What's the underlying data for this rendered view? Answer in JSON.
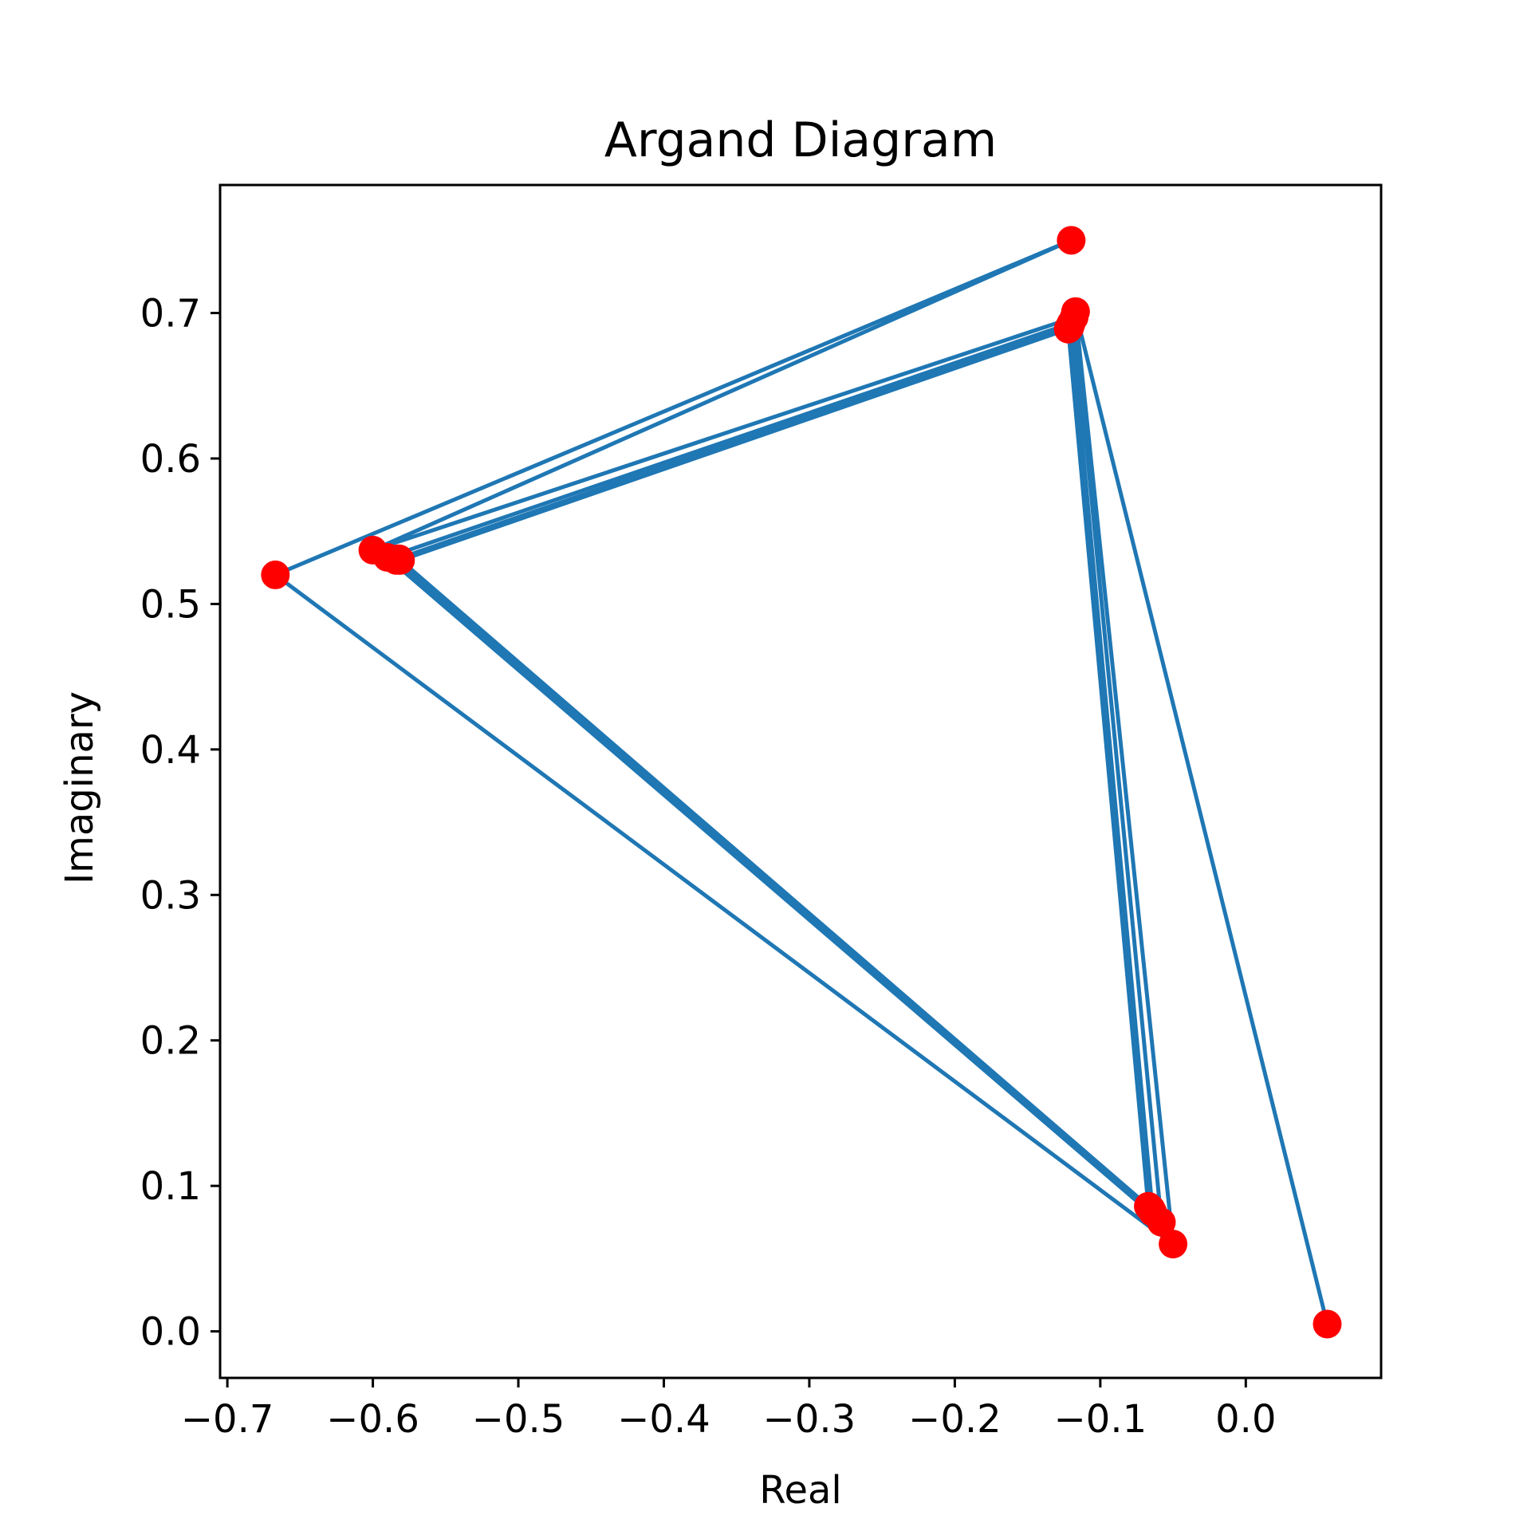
{
  "chart_data": {
    "type": "line",
    "title": "Argand Diagram",
    "xlabel": "Real",
    "ylabel": "Imaginary",
    "xlim": [
      -0.705,
      0.093
    ],
    "ylim": [
      -0.032,
      0.788
    ],
    "xticks": [
      -0.7,
      -0.6,
      -0.5,
      -0.4,
      -0.3,
      -0.2,
      -0.1,
      0.0
    ],
    "xtick_labels": [
      "−0.7",
      "−0.6",
      "−0.5",
      "−0.4",
      "−0.3",
      "−0.2",
      "−0.1",
      "0.0"
    ],
    "yticks": [
      0.0,
      0.1,
      0.2,
      0.3,
      0.4,
      0.5,
      0.6,
      0.7
    ],
    "ytick_labels": [
      "0.0",
      "0.1",
      "0.2",
      "0.3",
      "0.4",
      "0.5",
      "0.6",
      "0.7"
    ],
    "grid": false,
    "line_color": "#1f77b4",
    "marker_color": "#ff0000",
    "series": [
      {
        "points": [
          {
            "x": 0.056,
            "y": 0.005
          },
          {
            "x": -0.117,
            "y": 0.701
          },
          {
            "x": -0.05,
            "y": 0.06
          },
          {
            "x": -0.667,
            "y": 0.52
          },
          {
            "x": -0.12,
            "y": 0.75
          },
          {
            "x": -0.6,
            "y": 0.537
          },
          {
            "x": -0.118,
            "y": 0.697
          },
          {
            "x": -0.058,
            "y": 0.075
          },
          {
            "x": -0.59,
            "y": 0.532
          },
          {
            "x": -0.12,
            "y": 0.693
          },
          {
            "x": -0.064,
            "y": 0.082
          },
          {
            "x": -0.584,
            "y": 0.53
          },
          {
            "x": -0.121,
            "y": 0.69
          },
          {
            "x": -0.066,
            "y": 0.085
          },
          {
            "x": -0.582,
            "y": 0.531
          },
          {
            "x": -0.122,
            "y": 0.689
          },
          {
            "x": -0.067,
            "y": 0.086
          },
          {
            "x": -0.581,
            "y": 0.53
          },
          {
            "x": -0.122,
            "y": 0.689
          },
          {
            "x": -0.066,
            "y": 0.085
          },
          {
            "x": -0.582,
            "y": 0.531
          },
          {
            "x": -0.121,
            "y": 0.69
          },
          {
            "x": -0.065,
            "y": 0.084
          },
          {
            "x": -0.583,
            "y": 0.531
          },
          {
            "x": -0.121,
            "y": 0.691
          },
          {
            "x": -0.066,
            "y": 0.085
          },
          {
            "x": -0.582,
            "y": 0.53
          }
        ]
      }
    ]
  }
}
